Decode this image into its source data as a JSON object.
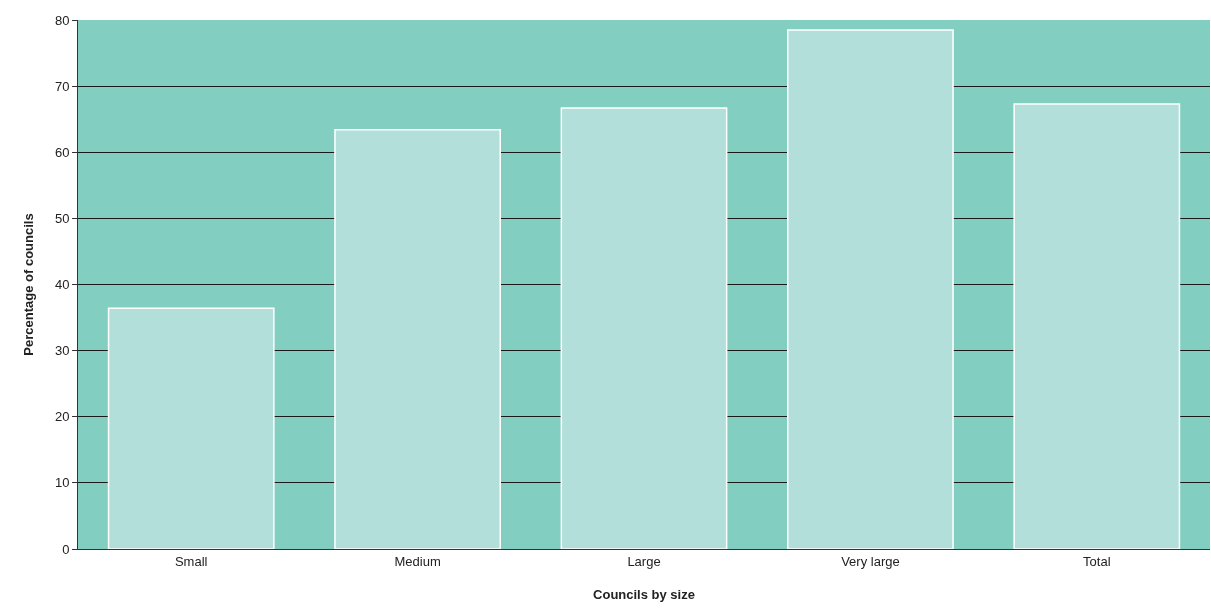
{
  "chart_data": {
    "type": "bar",
    "xlabel": "Councils by size",
    "ylabel": "Percentage of councils",
    "categories": [
      "Small",
      "Medium",
      "Large",
      "Very large",
      "Total"
    ],
    "values": [
      36.4,
      63.4,
      66.7,
      78.5,
      67.3
    ],
    "color": "#b2dfda",
    "ylim": [
      0,
      80
    ],
    "yticks": [
      0,
      10,
      20,
      30,
      40,
      50,
      60,
      70,
      80
    ],
    "grid": "y",
    "legend": false,
    "bands": [
      {
        "axis": "y",
        "from": 0,
        "to": 80,
        "color": "#82cfc1"
      }
    ]
  }
}
